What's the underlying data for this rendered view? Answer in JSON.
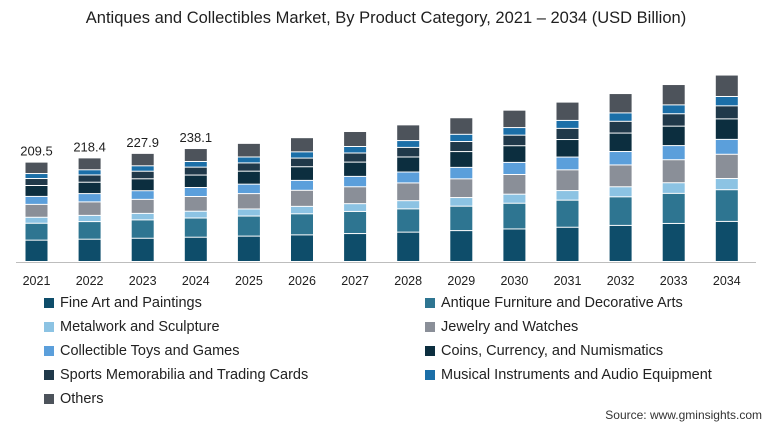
{
  "title": "Antiques and Collectibles Market, By Product Category, 2021 – 2034 (USD Billion)",
  "source": "Source: www.gminsights.com",
  "chart_data": {
    "type": "bar",
    "stacked": true,
    "title": "Antiques and Collectibles Market, By Product Category, 2021 – 2034 (USD Billion)",
    "xlabel": "",
    "ylabel": "",
    "ylim": [
      0,
      430
    ],
    "grid": false,
    "legend_position": "bottom",
    "categories": [
      "2021",
      "2022",
      "2023",
      "2024",
      "2025",
      "2026",
      "2027",
      "2028",
      "2029",
      "2030",
      "2031",
      "2032",
      "2033",
      "2034"
    ],
    "totals": [
      209.5,
      218.4,
      227.9,
      238.1,
      249.0,
      261.0,
      274.0,
      288.0,
      303.0,
      319.0,
      336.0,
      354.0,
      373.0,
      393.0
    ],
    "total_labels": [
      "209.5",
      "218.4",
      "227.9",
      "238.1",
      "",
      "",
      "",
      "",
      "",
      "",
      "",
      "",
      "",
      ""
    ],
    "series": [
      {
        "name": "Fine Art and Paintings",
        "color": "#0e4d6a",
        "values": [
          45.0,
          47.0,
          49.0,
          51.2,
          53.5,
          56.1,
          58.9,
          61.9,
          65.1,
          68.6,
          72.2,
          76.1,
          80.2,
          84.5
        ]
      },
      {
        "name": "Antique Furniture and Decorative Arts",
        "color": "#2e7591",
        "values": [
          35.6,
          37.1,
          38.7,
          40.5,
          42.3,
          44.4,
          46.6,
          49.0,
          51.5,
          54.2,
          57.1,
          60.2,
          63.4,
          66.8
        ]
      },
      {
        "name": "Metalwork and Sculpture",
        "color": "#8cc3e3",
        "values": [
          12.6,
          13.1,
          13.7,
          14.3,
          14.9,
          15.7,
          16.4,
          17.3,
          18.2,
          19.1,
          20.2,
          21.2,
          22.4,
          23.6
        ]
      },
      {
        "name": "Jewelry and Watches",
        "color": "#8a8f98",
        "values": [
          27.2,
          28.4,
          29.6,
          31.0,
          32.4,
          33.9,
          35.6,
          37.4,
          39.4,
          41.5,
          43.7,
          46.0,
          48.5,
          51.1
        ]
      },
      {
        "name": "Collectible Toys and Games",
        "color": "#5b9fdb",
        "values": [
          16.8,
          17.5,
          18.2,
          19.0,
          19.9,
          20.9,
          21.9,
          23.0,
          24.2,
          25.5,
          26.9,
          28.3,
          29.8,
          31.4
        ]
      },
      {
        "name": "Coins, Currency, and Numismatics",
        "color": "#0c2e3f",
        "values": [
          23.0,
          24.0,
          25.1,
          26.2,
          27.4,
          28.7,
          30.1,
          31.7,
          33.3,
          35.1,
          37.0,
          38.9,
          41.0,
          43.2
        ]
      },
      {
        "name": "Sports Memorabilia and Trading Cards",
        "color": "#20394a",
        "values": [
          14.7,
          15.3,
          16.0,
          16.7,
          17.4,
          18.3,
          19.2,
          20.2,
          21.2,
          22.3,
          23.5,
          24.8,
          26.1,
          27.5
        ]
      },
      {
        "name": "Musical Instruments and Audio Equipment",
        "color": "#1b6fa8",
        "values": [
          10.5,
          10.9,
          11.4,
          11.9,
          12.5,
          13.1,
          13.7,
          14.4,
          15.2,
          16.0,
          16.8,
          17.7,
          18.7,
          19.7
        ]
      },
      {
        "name": "Others",
        "color": "#4d535b",
        "values": [
          24.1,
          25.1,
          26.2,
          27.3,
          28.7,
          29.9,
          31.6,
          33.1,
          34.9,
          36.7,
          38.6,
          40.8,
          42.9,
          45.2
        ]
      }
    ]
  },
  "extra_colors": {
    "separator": "#ffffff",
    "axis": "#bdbdbd"
  }
}
